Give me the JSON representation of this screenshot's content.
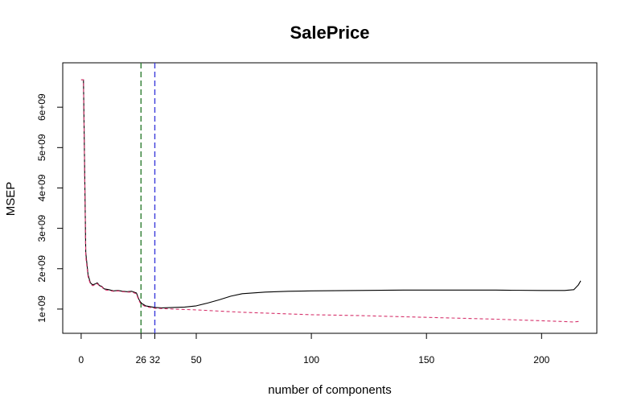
{
  "chart_data": {
    "type": "line",
    "title": "SalePrice",
    "xlabel": "number of components",
    "ylabel": "MSEP",
    "xlim": [
      -8,
      224
    ],
    "ylim": [
      400000000,
      7100000000
    ],
    "x_ticks": [
      0,
      26,
      32,
      50,
      100,
      150,
      200
    ],
    "x_tick_labels": [
      "0",
      "26",
      "32",
      "50",
      "100",
      "150",
      "200"
    ],
    "y_ticks": [
      1000000000,
      2000000000,
      3000000000,
      4000000000,
      5000000000,
      6000000000
    ],
    "y_tick_labels": [
      "1e+09",
      "2e+09",
      "3e+09",
      "4e+09",
      "5e+09",
      "6e+09"
    ],
    "vlines": [
      {
        "x": 26,
        "color": "#2e7d32",
        "style": "dashed"
      },
      {
        "x": 32,
        "color": "#3b3bdb",
        "style": "dashed"
      }
    ],
    "series": [
      {
        "color": "#000000",
        "style": "solid",
        "points": [
          [
            0,
            6680000000
          ],
          [
            1,
            6680000000
          ],
          [
            2,
            2400000000
          ],
          [
            3,
            1850000000
          ],
          [
            4,
            1650000000
          ],
          [
            5,
            1600000000
          ],
          [
            6,
            1620000000
          ],
          [
            7,
            1650000000
          ],
          [
            8,
            1580000000
          ],
          [
            9,
            1560000000
          ],
          [
            10,
            1500000000
          ],
          [
            12,
            1480000000
          ],
          [
            14,
            1450000000
          ],
          [
            16,
            1460000000
          ],
          [
            18,
            1440000000
          ],
          [
            20,
            1430000000
          ],
          [
            22,
            1440000000
          ],
          [
            24,
            1400000000
          ],
          [
            25,
            1250000000
          ],
          [
            26,
            1150000000
          ],
          [
            28,
            1080000000
          ],
          [
            30,
            1060000000
          ],
          [
            32,
            1040000000
          ],
          [
            35,
            1030000000
          ],
          [
            40,
            1040000000
          ],
          [
            45,
            1050000000
          ],
          [
            50,
            1080000000
          ],
          [
            55,
            1150000000
          ],
          [
            60,
            1230000000
          ],
          [
            65,
            1320000000
          ],
          [
            70,
            1380000000
          ],
          [
            80,
            1420000000
          ],
          [
            90,
            1440000000
          ],
          [
            100,
            1450000000
          ],
          [
            120,
            1460000000
          ],
          [
            140,
            1470000000
          ],
          [
            160,
            1470000000
          ],
          [
            180,
            1470000000
          ],
          [
            200,
            1460000000
          ],
          [
            210,
            1460000000
          ],
          [
            214,
            1480000000
          ],
          [
            216,
            1600000000
          ],
          [
            217,
            1700000000
          ]
        ]
      },
      {
        "color": "#d6336c",
        "style": "dashed",
        "points": [
          [
            0,
            6680000000
          ],
          [
            1,
            6680000000
          ],
          [
            2,
            2300000000
          ],
          [
            3,
            1800000000
          ],
          [
            4,
            1620000000
          ],
          [
            5,
            1580000000
          ],
          [
            6,
            1600000000
          ],
          [
            7,
            1630000000
          ],
          [
            8,
            1570000000
          ],
          [
            9,
            1550000000
          ],
          [
            10,
            1480000000
          ],
          [
            12,
            1460000000
          ],
          [
            14,
            1440000000
          ],
          [
            16,
            1450000000
          ],
          [
            18,
            1430000000
          ],
          [
            20,
            1420000000
          ],
          [
            22,
            1420000000
          ],
          [
            24,
            1380000000
          ],
          [
            25,
            1220000000
          ],
          [
            26,
            1120000000
          ],
          [
            28,
            1060000000
          ],
          [
            30,
            1040000000
          ],
          [
            32,
            1020000000
          ],
          [
            40,
            1000000000
          ],
          [
            50,
            980000000
          ],
          [
            60,
            950000000
          ],
          [
            70,
            920000000
          ],
          [
            80,
            900000000
          ],
          [
            90,
            880000000
          ],
          [
            100,
            860000000
          ],
          [
            120,
            840000000
          ],
          [
            140,
            810000000
          ],
          [
            160,
            780000000
          ],
          [
            180,
            750000000
          ],
          [
            200,
            710000000
          ],
          [
            210,
            690000000
          ],
          [
            214,
            680000000
          ],
          [
            217,
            700000000
          ]
        ]
      }
    ]
  }
}
